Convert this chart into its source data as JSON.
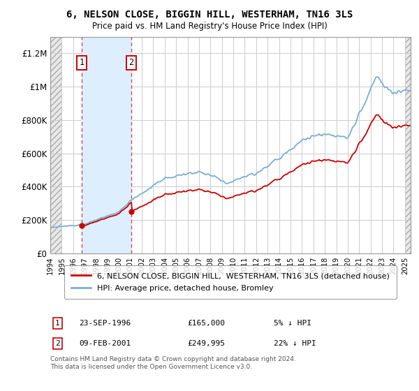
{
  "title": "6, NELSON CLOSE, BIGGIN HILL, WESTERHAM, TN16 3LS",
  "subtitle": "Price paid vs. HM Land Registry's House Price Index (HPI)",
  "ylim": [
    0,
    1300000
  ],
  "yticks": [
    0,
    200000,
    400000,
    600000,
    800000,
    1000000,
    1200000
  ],
  "ytick_labels": [
    "£0",
    "£200K",
    "£400K",
    "£600K",
    "£800K",
    "£1M",
    "£1.2M"
  ],
  "purchase1_date": 1996.73,
  "purchase1_price": 165000,
  "purchase2_date": 2001.09,
  "purchase2_price": 249995,
  "purchase1_date_str": "23-SEP-1996",
  "purchase1_price_str": "£165,000",
  "purchase1_hpi_str": "5% ↓ HPI",
  "purchase2_date_str": "09-FEB-2001",
  "purchase2_price_str": "£249,995",
  "purchase2_hpi_str": "22% ↓ HPI",
  "hpi_color": "#7aaed6",
  "price_color": "#cc0000",
  "shaded_region_color": "#ddeeff",
  "legend_label_price": "6, NELSON CLOSE, BIGGIN HILL,  WESTERHAM, TN16 3LS (detached house)",
  "legend_label_hpi": "HPI: Average price, detached house, Bromley",
  "footer_text": "Contains HM Land Registry data © Crown copyright and database right 2024.\nThis data is licensed under the Open Government Licence v3.0.",
  "xmin": 1994.0,
  "xmax": 2025.5,
  "hatch_xmin": 1994.0,
  "hatch_xmax1": 1995.0,
  "hatch_xmin2": 2025.0,
  "hatch_xmax2": 2025.5
}
